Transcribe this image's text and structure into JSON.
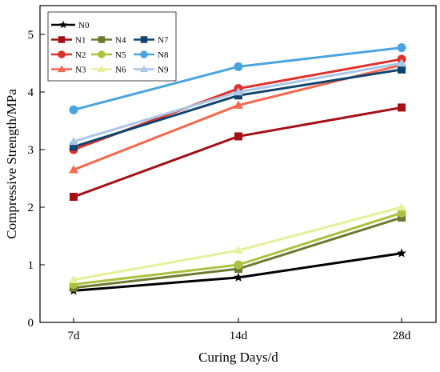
{
  "chart_data": {
    "type": "line",
    "xlabel": "Curing Days/d",
    "ylabel": "Compressive Strength/MPa",
    "categories": [
      "7d",
      "14d",
      "28d"
    ],
    "ylim": [
      0,
      5.5
    ],
    "yticks": [
      0,
      1,
      2,
      3,
      4,
      5
    ],
    "grid": false,
    "legend_placement": "top-left",
    "series": [
      {
        "name": "N0",
        "color": "#000000",
        "marker": "star",
        "values": [
          0.55,
          0.78,
          1.2
        ]
      },
      {
        "name": "N1",
        "color": "#a50f15",
        "marker": "square",
        "values": [
          2.18,
          3.23,
          3.73
        ]
      },
      {
        "name": "N2",
        "color": "#e0302a",
        "marker": "circle",
        "values": [
          3.0,
          4.06,
          4.57
        ]
      },
      {
        "name": "N3",
        "color": "#f4694e",
        "marker": "triangle",
        "values": [
          2.65,
          3.77,
          4.47
        ]
      },
      {
        "name": "N4",
        "color": "#6b7a2f",
        "marker": "square",
        "values": [
          0.6,
          0.93,
          1.82
        ]
      },
      {
        "name": "N5",
        "color": "#a9c23f",
        "marker": "circle",
        "values": [
          0.66,
          1.0,
          1.9
        ]
      },
      {
        "name": "N6",
        "color": "#e6ef9a",
        "marker": "triangle",
        "values": [
          0.74,
          1.25,
          2.0
        ]
      },
      {
        "name": "N7",
        "color": "#0f4470",
        "marker": "square",
        "values": [
          3.05,
          3.94,
          4.39
        ]
      },
      {
        "name": "N8",
        "color": "#4aa3df",
        "marker": "circle",
        "values": [
          3.69,
          4.44,
          4.77
        ]
      },
      {
        "name": "N9",
        "color": "#a9c6e6",
        "marker": "triangle",
        "values": [
          3.14,
          4.0,
          4.5
        ]
      }
    ]
  }
}
